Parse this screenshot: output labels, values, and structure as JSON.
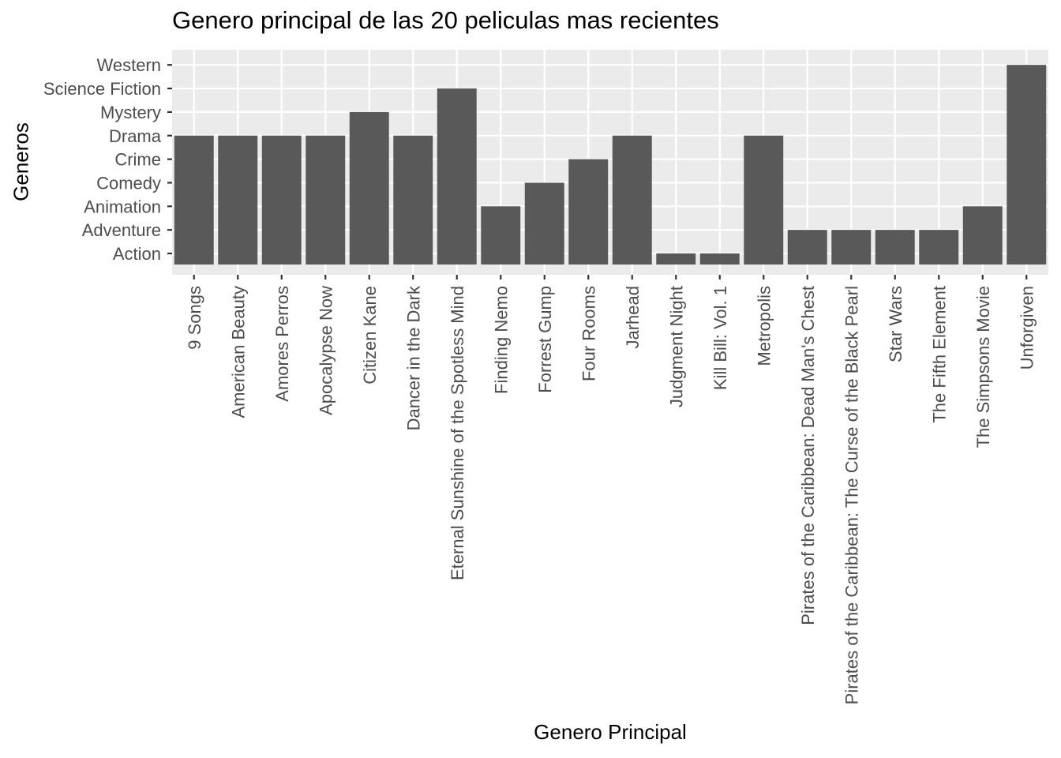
{
  "chart_data": {
    "type": "bar",
    "title": "Genero principal de las 20 peliculas mas recientes",
    "xlabel": "Genero Principal",
    "ylabel": "Generos",
    "categories": [
      "9 Songs",
      "American Beauty",
      "Amores Perros",
      "Apocalypse Now",
      "Citizen Kane",
      "Dancer in the Dark",
      "Eternal Sunshine of the Spotless Mind",
      "Finding Nemo",
      "Forrest Gump",
      "Four Rooms",
      "Jarhead",
      "Judgment Night",
      "Kill Bill: Vol. 1",
      "Metropolis",
      "Pirates of the Caribbean: Dead Man's Chest",
      "Pirates of the Caribbean: The Curse of the Black Pearl",
      "Star Wars",
      "The Fifth Element",
      "The Simpsons Movie",
      "Unforgiven"
    ],
    "y_levels": [
      "Action",
      "Adventure",
      "Animation",
      "Comedy",
      "Crime",
      "Drama",
      "Mystery",
      "Science Fiction",
      "Western"
    ],
    "values": [
      "Drama",
      "Drama",
      "Drama",
      "Drama",
      "Mystery",
      "Drama",
      "Science Fiction",
      "Animation",
      "Comedy",
      "Crime",
      "Drama",
      "Action",
      "Action",
      "Drama",
      "Adventure",
      "Adventure",
      "Adventure",
      "Adventure",
      "Animation",
      "Western"
    ],
    "grid": true,
    "legend": "none",
    "colors": {
      "bar": "#595959",
      "panel": "#EBEBEB",
      "grid": "#FFFFFF",
      "tick": "#333333",
      "tick_label": "#4D4D4D"
    }
  }
}
